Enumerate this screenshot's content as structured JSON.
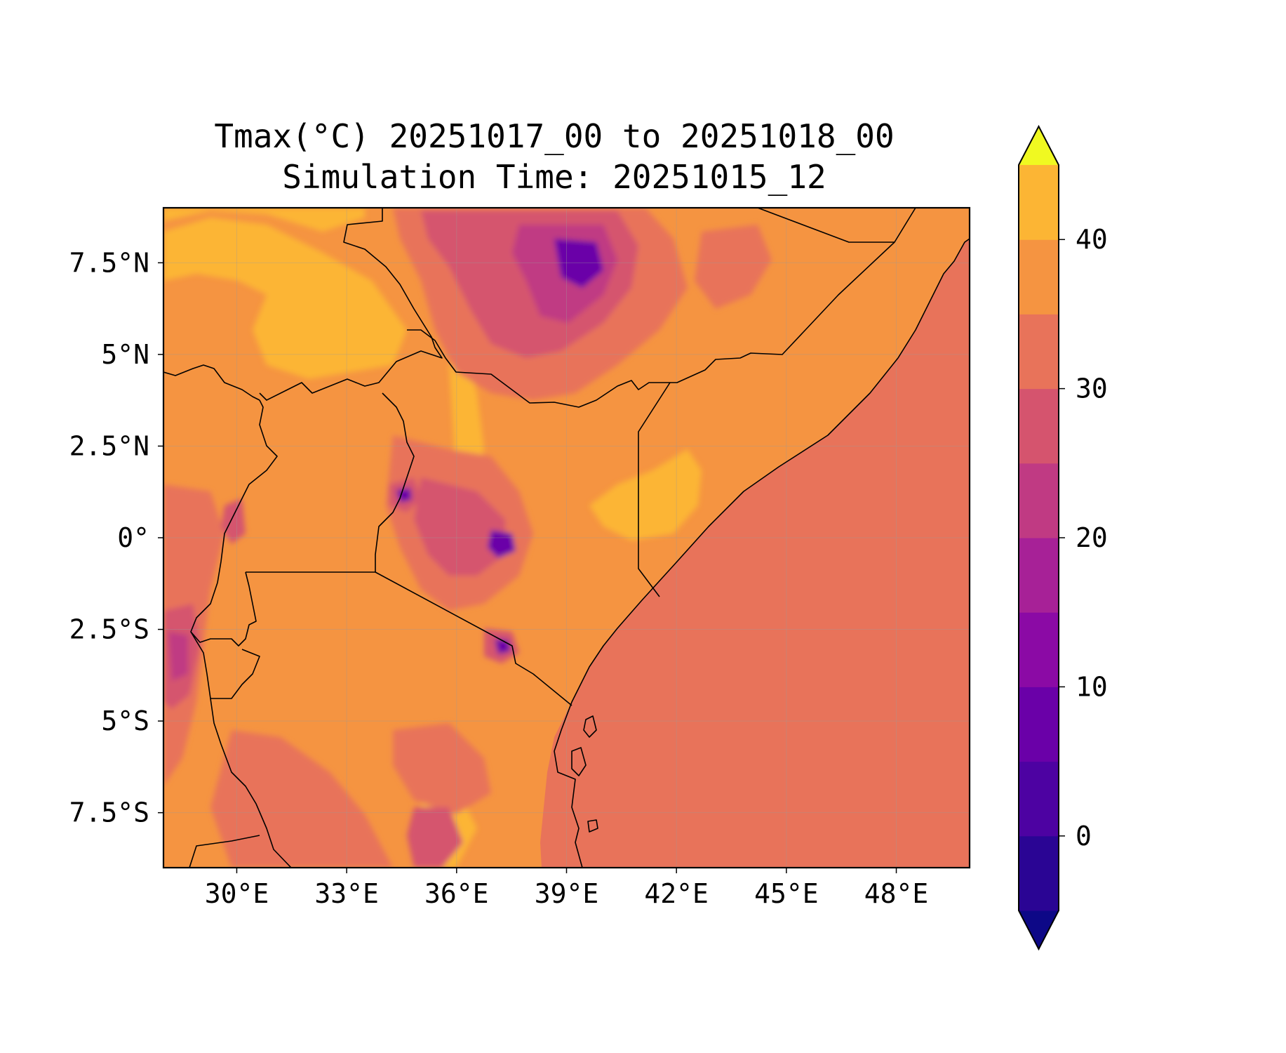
{
  "title": {
    "line1": "Tmax(°C) 20251017_00 to 20251018_00",
    "line2": "Simulation Time: 20251015_12"
  },
  "map": {
    "lon_range": [
      28,
      50
    ],
    "lat_range": [
      -9,
      9
    ],
    "x_ticks": [
      {
        "value": 30,
        "label": "30°E"
      },
      {
        "value": 33,
        "label": "33°E"
      },
      {
        "value": 36,
        "label": "36°E"
      },
      {
        "value": 39,
        "label": "39°E"
      },
      {
        "value": 42,
        "label": "42°E"
      },
      {
        "value": 45,
        "label": "45°E"
      },
      {
        "value": 48,
        "label": "48°E"
      }
    ],
    "y_ticks": [
      {
        "value": 7.5,
        "label": "7.5°N"
      },
      {
        "value": 5,
        "label": "5°N"
      },
      {
        "value": 2.5,
        "label": "2.5°N"
      },
      {
        "value": 0,
        "label": "0°"
      },
      {
        "value": -2.5,
        "label": "2.5°S"
      },
      {
        "value": -5,
        "label": "5°S"
      },
      {
        "value": -7.5,
        "label": "7.5°S"
      }
    ],
    "gridlines": true
  },
  "colorbar": {
    "orientation": "vertical",
    "extend": "both",
    "levels": [
      -5,
      0,
      5,
      10,
      15,
      20,
      25,
      30,
      35,
      40,
      45
    ],
    "colors": [
      "#2a0594",
      "#4d02a2",
      "#6a00a8",
      "#8b0aa5",
      "#a72197",
      "#c03a83",
      "#d5546e",
      "#e8735a",
      "#f59441",
      "#fcb534",
      "#f2dd28"
    ],
    "under_color": "#0d0887",
    "over_color": "#f0f921",
    "ticks": [
      {
        "value": 0,
        "label": "0"
      },
      {
        "value": 10,
        "label": "10"
      },
      {
        "value": 20,
        "label": "20"
      },
      {
        "value": 30,
        "label": "30"
      },
      {
        "value": 40,
        "label": "40"
      }
    ]
  },
  "field_colors": {
    "ocean": "#e8735a",
    "land_base": "#f59441",
    "hot": "#fcb534",
    "warm_highland": "#e8735a",
    "cool_highland": "#d5546e",
    "cold_highland": "#c03a83",
    "peak": "#a72197",
    "summit": "#6a00a8"
  }
}
